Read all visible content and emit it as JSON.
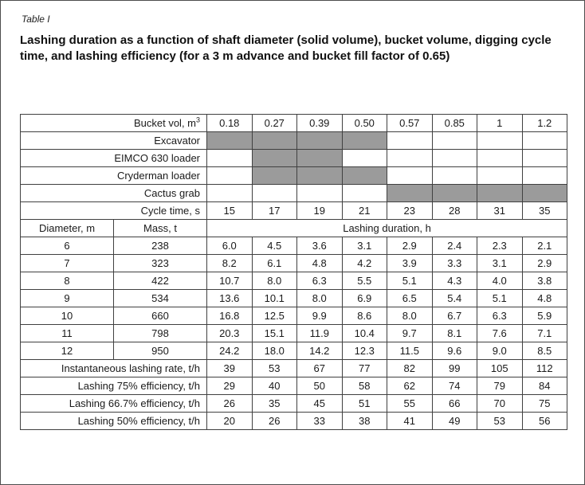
{
  "caption": {
    "label": "Table I",
    "title": "Lashing duration as a function of shaft diameter (solid volume), bucket volume, digging cycle time, and lashing efficiency (for a 3 m advance and bucket fill factor of 0.65)"
  },
  "colors": {
    "shaded": "#9b9b9b"
  },
  "table": {
    "bucket_row": {
      "label": "Bucket vol, m",
      "label_sup": "3",
      "values": [
        "0.18",
        "0.27",
        "0.39",
        "0.50",
        "0.57",
        "0.85",
        "1",
        "1.2"
      ]
    },
    "equipment_rows": [
      {
        "label": "Excavator",
        "shaded": [
          0,
          1,
          2,
          3
        ]
      },
      {
        "label": "EIMCO 630 loader",
        "shaded": [
          1,
          2
        ]
      },
      {
        "label": "Cryderman loader",
        "shaded": [
          1,
          2,
          3
        ]
      },
      {
        "label": "Cactus grab",
        "shaded": [
          4,
          5,
          6,
          7
        ]
      }
    ],
    "cycle_row": {
      "label": "Cycle time, s",
      "values": [
        "15",
        "17",
        "19",
        "21",
        "23",
        "28",
        "31",
        "35"
      ]
    },
    "duration_header": {
      "col1": "Diameter, m",
      "col2": "Mass, t",
      "span_label": "Lashing duration, h"
    },
    "duration_rows": [
      {
        "diameter": "6",
        "mass": "238",
        "values": [
          "6.0",
          "4.5",
          "3.6",
          "3.1",
          "2.9",
          "2.4",
          "2.3",
          "2.1"
        ]
      },
      {
        "diameter": "7",
        "mass": "323",
        "values": [
          "8.2",
          "6.1",
          "4.8",
          "4.2",
          "3.9",
          "3.3",
          "3.1",
          "2.9"
        ]
      },
      {
        "diameter": "8",
        "mass": "422",
        "values": [
          "10.7",
          "8.0",
          "6.3",
          "5.5",
          "5.1",
          "4.3",
          "4.0",
          "3.8"
        ]
      },
      {
        "diameter": "9",
        "mass": "534",
        "values": [
          "13.6",
          "10.1",
          "8.0",
          "6.9",
          "6.5",
          "5.4",
          "5.1",
          "4.8"
        ]
      },
      {
        "diameter": "10",
        "mass": "660",
        "values": [
          "16.8",
          "12.5",
          "9.9",
          "8.6",
          "8.0",
          "6.7",
          "6.3",
          "5.9"
        ]
      },
      {
        "diameter": "11",
        "mass": "798",
        "values": [
          "20.3",
          "15.1",
          "11.9",
          "10.4",
          "9.7",
          "8.1",
          "7.6",
          "7.1"
        ]
      },
      {
        "diameter": "12",
        "mass": "950",
        "values": [
          "24.2",
          "18.0",
          "14.2",
          "12.3",
          "11.5",
          "9.6",
          "9.0",
          "8.5"
        ]
      }
    ],
    "rate_rows": [
      {
        "label": "Instantaneous lashing rate, t/h",
        "values": [
          "39",
          "53",
          "67",
          "77",
          "82",
          "99",
          "105",
          "112"
        ]
      },
      {
        "label": "Lashing 75% efficiency, t/h",
        "values": [
          "29",
          "40",
          "50",
          "58",
          "62",
          "74",
          "79",
          "84"
        ]
      },
      {
        "label": "Lashing 66.7% efficiency, t/h",
        "values": [
          "26",
          "35",
          "45",
          "51",
          "55",
          "66",
          "70",
          "75"
        ]
      },
      {
        "label": "Lashing 50% efficiency, t/h",
        "values": [
          "20",
          "26",
          "33",
          "38",
          "41",
          "49",
          "53",
          "56"
        ]
      }
    ]
  }
}
